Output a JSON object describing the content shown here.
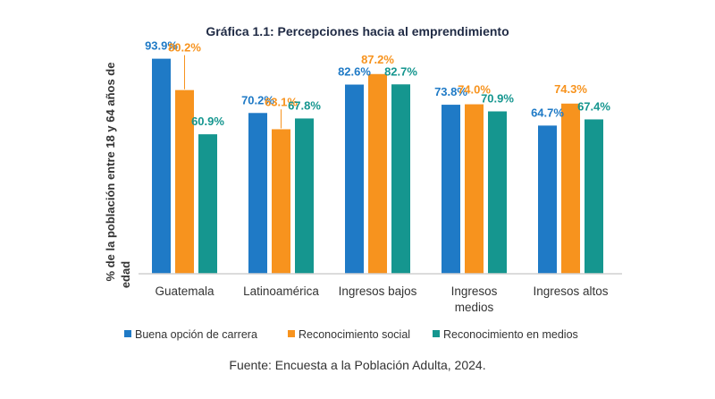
{
  "chart_data": {
    "type": "bar",
    "title": "Gráfica 1.1: Percepciones hacia al emprendimiento",
    "ylabel_lines": [
      "% de la población entre 18 y 64 años de",
      "edad"
    ],
    "xlabel": "",
    "categories": [
      [
        "Guatemala"
      ],
      [
        "Latinoamérica"
      ],
      [
        "Ingresos bajos"
      ],
      [
        "Ingresos",
        "medios"
      ],
      [
        "Ingresos altos"
      ]
    ],
    "series": [
      {
        "name": "Buena opción de carrera",
        "color": "#1f7ac6",
        "values": [
          93.9,
          70.2,
          82.6,
          73.8,
          64.7
        ],
        "labels": [
          "93.9%",
          "70.2%",
          "82.6%",
          "73.8%",
          "64.7%"
        ]
      },
      {
        "name": "Reconocimiento social",
        "color": "#f7931e",
        "values": [
          80.2,
          63.1,
          87.2,
          74.0,
          74.3
        ],
        "labels": [
          "80.2%",
          "63.1%",
          "87.2%",
          "74.0%",
          "74.3%"
        ]
      },
      {
        "name": "Reconocimiento en medios",
        "color": "#15968f",
        "values": [
          60.9,
          67.8,
          82.7,
          70.9,
          67.4
        ],
        "labels": [
          "60.9%",
          "67.8%",
          "82.7%",
          "70.9%",
          "67.4%"
        ]
      }
    ],
    "ylim": [
      0,
      100
    ],
    "grid": false,
    "legend": "bottom",
    "source": "Fuente: Encuesta a la Población Adulta, 2024."
  }
}
